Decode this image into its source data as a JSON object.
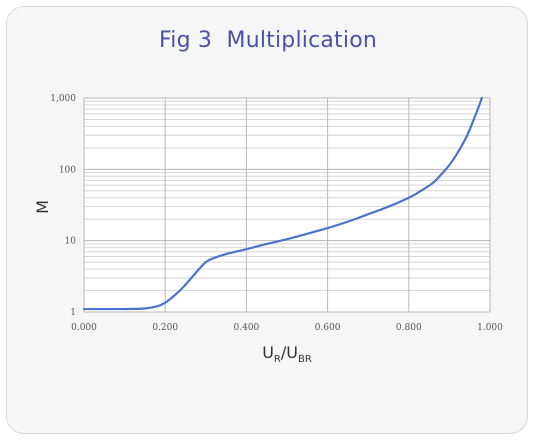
{
  "figure": {
    "title": "Fig 3  Multiplication"
  },
  "chart_data": {
    "type": "line",
    "title": "Fig 3  Multiplication",
    "xlabel_main": "U",
    "xlabel_sub1": "R",
    "xlabel_sep": "/U",
    "xlabel_sub2": "BR",
    "ylabel": "M",
    "xlim": [
      0.0,
      1.0
    ],
    "ylim": [
      1,
      1000
    ],
    "yscale": "log",
    "grid": true,
    "xticks": [
      0.0,
      0.2,
      0.4,
      0.6,
      0.8,
      1.0
    ],
    "xtick_labels": [
      "0.000",
      "0.200",
      "0.400",
      "0.600",
      "0.800",
      "1.000"
    ],
    "yticks": [
      1,
      10,
      100,
      1000
    ],
    "ytick_labels": [
      "1",
      "10",
      "100",
      "1,000"
    ],
    "line_color": "#4a74c9",
    "series": [
      {
        "x": [
          0.0,
          0.05,
          0.1,
          0.15,
          0.18,
          0.2,
          0.22,
          0.24,
          0.26,
          0.28,
          0.3,
          0.32,
          0.35,
          0.4,
          0.45,
          0.5,
          0.55,
          0.6,
          0.65,
          0.7,
          0.75,
          0.8,
          0.83,
          0.86,
          0.88,
          0.9,
          0.92,
          0.94,
          0.95,
          0.96,
          0.97,
          0.98
        ],
        "y": [
          1.1,
          1.1,
          1.1,
          1.12,
          1.2,
          1.35,
          1.65,
          2.1,
          2.8,
          3.8,
          5.0,
          5.7,
          6.5,
          7.6,
          9.0,
          10.5,
          12.5,
          15.0,
          18.5,
          23.5,
          30.0,
          40.0,
          50.0,
          65.0,
          85.0,
          115.0,
          170.0,
          270.0,
          360.0,
          500.0,
          700.0,
          1000.0
        ]
      }
    ]
  }
}
